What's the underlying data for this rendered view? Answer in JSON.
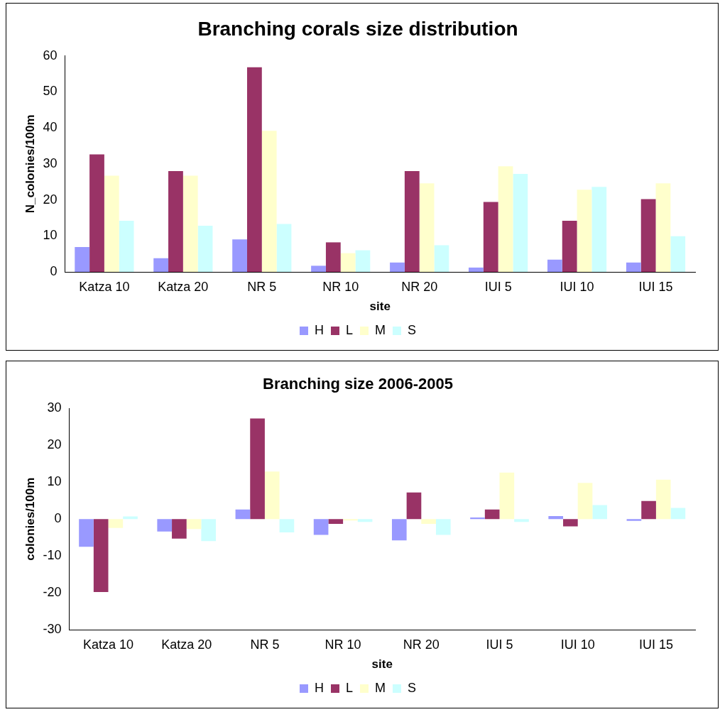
{
  "chart_data": [
    {
      "type": "bar",
      "title": "Branching corals size distribution",
      "xlabel": "site",
      "ylabel": "N_colonies/100m",
      "categories": [
        "Katza 10",
        "Katza 20",
        "NR 5",
        "NR 10",
        "NR 20",
        "IUI 5",
        "IUI 10",
        "IUI 15"
      ],
      "series": [
        {
          "name": "H",
          "color": "#9999ff",
          "values": [
            6.9,
            3.8,
            9.0,
            1.7,
            2.6,
            1.2,
            3.4,
            2.6
          ]
        },
        {
          "name": "L",
          "color": "#993366",
          "values": [
            32.6,
            28.0,
            56.8,
            8.2,
            28.0,
            19.4,
            14.2,
            20.2
          ]
        },
        {
          "name": "M",
          "color": "#ffffcc",
          "values": [
            26.7,
            26.7,
            39.2,
            5.2,
            24.6,
            29.3,
            22.8,
            24.6
          ]
        },
        {
          "name": "S",
          "color": "#ccffff",
          "values": [
            14.2,
            12.8,
            13.3,
            6.0,
            7.4,
            27.2,
            23.6,
            9.9
          ]
        }
      ],
      "ylim": [
        0,
        60
      ],
      "yticks": [
        0,
        10,
        20,
        30,
        40,
        50,
        60
      ],
      "grid": false,
      "legend": "bottom"
    },
    {
      "type": "bar",
      "title": "Branching size 2006-2005",
      "xlabel": "site",
      "ylabel": "colonies/100m",
      "categories": [
        "Katza 10",
        "Katza 20",
        "NR 5",
        "NR 10",
        "NR 20",
        "IUI 5",
        "IUI 10",
        "IUI 15"
      ],
      "series": [
        {
          "name": "H",
          "color": "#9999ff",
          "values": [
            -7.5,
            -3.4,
            2.6,
            -4.3,
            -5.8,
            0.4,
            0.8,
            -0.5
          ]
        },
        {
          "name": "L",
          "color": "#993366",
          "values": [
            -19.8,
            -5.3,
            27.3,
            -1.3,
            7.2,
            2.6,
            -2.0,
            4.9
          ]
        },
        {
          "name": "M",
          "color": "#ffffcc",
          "values": [
            -2.4,
            -2.7,
            12.9,
            -0.4,
            -1.3,
            12.6,
            9.8,
            10.7
          ]
        },
        {
          "name": "S",
          "color": "#ccffff",
          "values": [
            0.7,
            -6.0,
            -3.6,
            -0.8,
            -4.3,
            -0.8,
            3.8,
            3.0
          ]
        }
      ],
      "ylim": [
        -30,
        30
      ],
      "yticks": [
        -30,
        -20,
        -10,
        0,
        10,
        20,
        30
      ],
      "grid": false,
      "legend": "bottom"
    }
  ]
}
